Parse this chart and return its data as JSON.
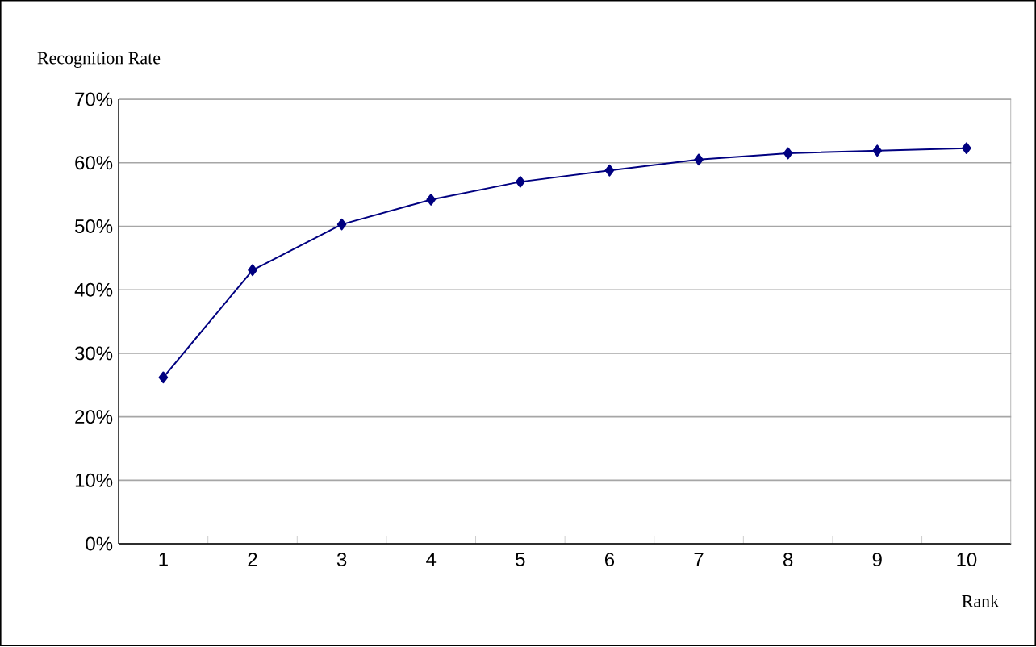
{
  "chart_data": {
    "type": "line",
    "xlabel": "Rank",
    "ylabel": "Recognition Rate",
    "categories": [
      "1",
      "2",
      "3",
      "4",
      "5",
      "6",
      "7",
      "8",
      "9",
      "10"
    ],
    "series": [
      {
        "color": "#000080",
        "values": [
          26.2,
          43.1,
          50.3,
          54.2,
          57.0,
          58.8,
          60.5,
          61.5,
          61.9,
          62.3
        ]
      }
    ],
    "ylim": [
      0,
      70
    ],
    "yticks": [
      {
        "value": 0,
        "label": "0%"
      },
      {
        "value": 10,
        "label": "10%"
      },
      {
        "value": 20,
        "label": "20%"
      },
      {
        "value": 30,
        "label": "30%"
      },
      {
        "value": 40,
        "label": "40%"
      },
      {
        "value": 50,
        "label": "50%"
      },
      {
        "value": 60,
        "label": "60%"
      },
      {
        "value": 70,
        "label": "70%"
      }
    ],
    "grid": "y",
    "marker": "diamond",
    "line_style": "solid"
  }
}
